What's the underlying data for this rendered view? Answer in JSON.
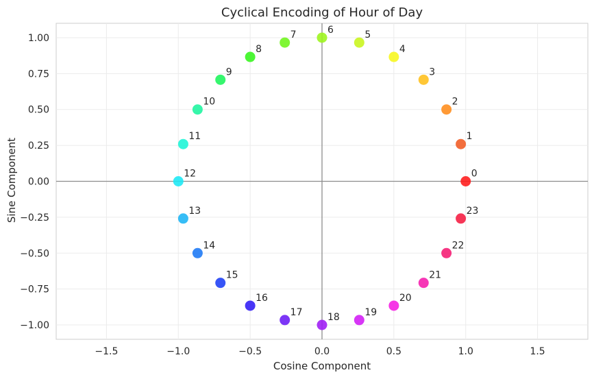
{
  "chart_data": {
    "type": "scatter",
    "title": "Cyclical Encoding of Hour of Day",
    "xlabel": "Cosine Component",
    "ylabel": "Sine Component",
    "xlim": [
      -1.85,
      1.85
    ],
    "ylim": [
      -1.1,
      1.1
    ],
    "xticks": [
      -1.5,
      -1.0,
      -0.5,
      0.0,
      0.5,
      1.0,
      1.5
    ],
    "xtick_labels": [
      "−1.5",
      "−1.0",
      "−0.5",
      "0.0",
      "0.5",
      "1.0",
      "1.5"
    ],
    "yticks": [
      1.0,
      0.75,
      0.5,
      0.25,
      0.0,
      -0.25,
      -0.5,
      -0.75,
      -1.0
    ],
    "ytick_labels": [
      "1.00",
      "0.75",
      "0.50",
      "0.25",
      "0.00",
      "−0.25",
      "−0.50",
      "−0.75",
      "−1.00"
    ],
    "grid": true,
    "reference_lines": {
      "x": 0,
      "y": 0
    },
    "colormap": "hsv",
    "points": [
      {
        "label": "0",
        "x": 1.0,
        "y": 0.0,
        "color": "#ff1a1a"
      },
      {
        "label": "1",
        "x": 0.966,
        "y": 0.259,
        "color": "#f05a22"
      },
      {
        "label": "2",
        "x": 0.866,
        "y": 0.5,
        "color": "#ff8c1a"
      },
      {
        "label": "3",
        "x": 0.707,
        "y": 0.707,
        "color": "#ffbf1a"
      },
      {
        "label": "4",
        "x": 0.5,
        "y": 0.866,
        "color": "#f7f71a"
      },
      {
        "label": "5",
        "x": 0.259,
        "y": 0.966,
        "color": "#c8f51a"
      },
      {
        "label": "6",
        "x": 0.0,
        "y": 1.0,
        "color": "#9cf51a"
      },
      {
        "label": "7",
        "x": -0.259,
        "y": 0.966,
        "color": "#6ef51a"
      },
      {
        "label": "8",
        "x": -0.5,
        "y": 0.866,
        "color": "#33f51a"
      },
      {
        "label": "9",
        "x": -0.707,
        "y": 0.707,
        "color": "#1af55a"
      },
      {
        "label": "10",
        "x": -0.866,
        "y": 0.5,
        "color": "#1af59e"
      },
      {
        "label": "11",
        "x": -0.966,
        "y": 0.259,
        "color": "#1af5d6"
      },
      {
        "label": "12",
        "x": -1.0,
        "y": 0.0,
        "color": "#1ae8f5"
      },
      {
        "label": "13",
        "x": -0.966,
        "y": -0.259,
        "color": "#1ab4f5"
      },
      {
        "label": "14",
        "x": -0.866,
        "y": -0.5,
        "color": "#1a78f5"
      },
      {
        "label": "15",
        "x": -0.707,
        "y": -0.707,
        "color": "#1a3cf5"
      },
      {
        "label": "16",
        "x": -0.5,
        "y": -0.866,
        "color": "#2f1af5"
      },
      {
        "label": "17",
        "x": -0.259,
        "y": -0.966,
        "color": "#6a1af5"
      },
      {
        "label": "18",
        "x": 0.0,
        "y": -1.0,
        "color": "#9e1af5"
      },
      {
        "label": "19",
        "x": 0.259,
        "y": -0.966,
        "color": "#d21af5"
      },
      {
        "label": "20",
        "x": 0.5,
        "y": -0.866,
        "color": "#f51ae3"
      },
      {
        "label": "21",
        "x": 0.707,
        "y": -0.707,
        "color": "#f51aac"
      },
      {
        "label": "22",
        "x": 0.866,
        "y": -0.5,
        "color": "#f51a72"
      },
      {
        "label": "23",
        "x": 0.966,
        "y": -0.259,
        "color": "#f51a40"
      }
    ]
  }
}
